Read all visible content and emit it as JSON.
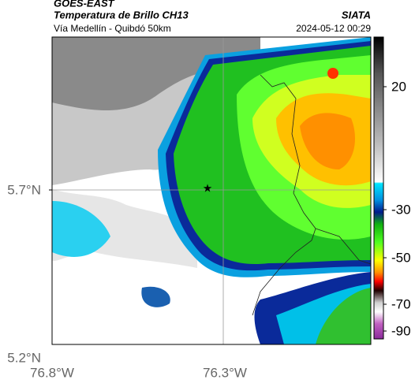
{
  "header": {
    "source": "GOES-EAST",
    "product": "Temperatura de Brillo CH13",
    "organization": "SIATA",
    "region": "Vía Medellín - Quibdó 50km",
    "timestamp": "2024-05-12 00:29"
  },
  "axes": {
    "latitude": [
      "5.7°N",
      "5.2°N"
    ],
    "longitude": [
      "76.8°W",
      "76.3°W"
    ]
  },
  "colorbar": {
    "ticks": [
      "20",
      "-30",
      "-50",
      "-70",
      "-90"
    ]
  }
}
